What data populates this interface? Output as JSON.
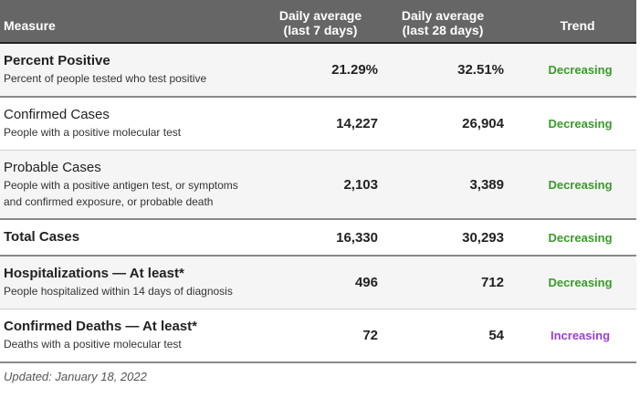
{
  "header": {
    "measure": "Measure",
    "avg7_line1": "Daily average",
    "avg7_line2": "(last 7 days)",
    "avg28_line1": "Daily average",
    "avg28_line2": "(last 28 days)",
    "trend": "Trend"
  },
  "rows": [
    {
      "title": "Percent Positive",
      "subtitle": "Percent of people tested who test positive",
      "avg7": "21.29%",
      "avg28": "32.51%",
      "trend": "Decreasing"
    },
    {
      "title": "Confirmed Cases",
      "subtitle": "People with a positive molecular test",
      "avg7": "14,227",
      "avg28": "26,904",
      "trend": "Decreasing"
    },
    {
      "title": "Probable Cases",
      "subtitle1": "People with a positive antigen test, or symptoms",
      "subtitle2": "and confirmed exposure, or probable death",
      "avg7": "2,103",
      "avg28": "3,389",
      "trend": "Decreasing"
    },
    {
      "title": "Total Cases",
      "avg7": "16,330",
      "avg28": "30,293",
      "trend": "Decreasing"
    },
    {
      "title": "Hospitalizations — At least*",
      "subtitle": "People hospitalized within 14 days of diagnosis",
      "avg7": "496",
      "avg28": "712",
      "trend": "Decreasing"
    },
    {
      "title": "Confirmed Deaths — At least*",
      "subtitle": "Deaths with a positive molecular test",
      "avg7": "72",
      "avg28": "54",
      "trend": "Increasing"
    }
  ],
  "footer": "Updated: January 18, 2022",
  "colors": {
    "header_bg": "#666666",
    "decreasing": "#3a9a2a",
    "increasing": "#9b3fcf"
  }
}
